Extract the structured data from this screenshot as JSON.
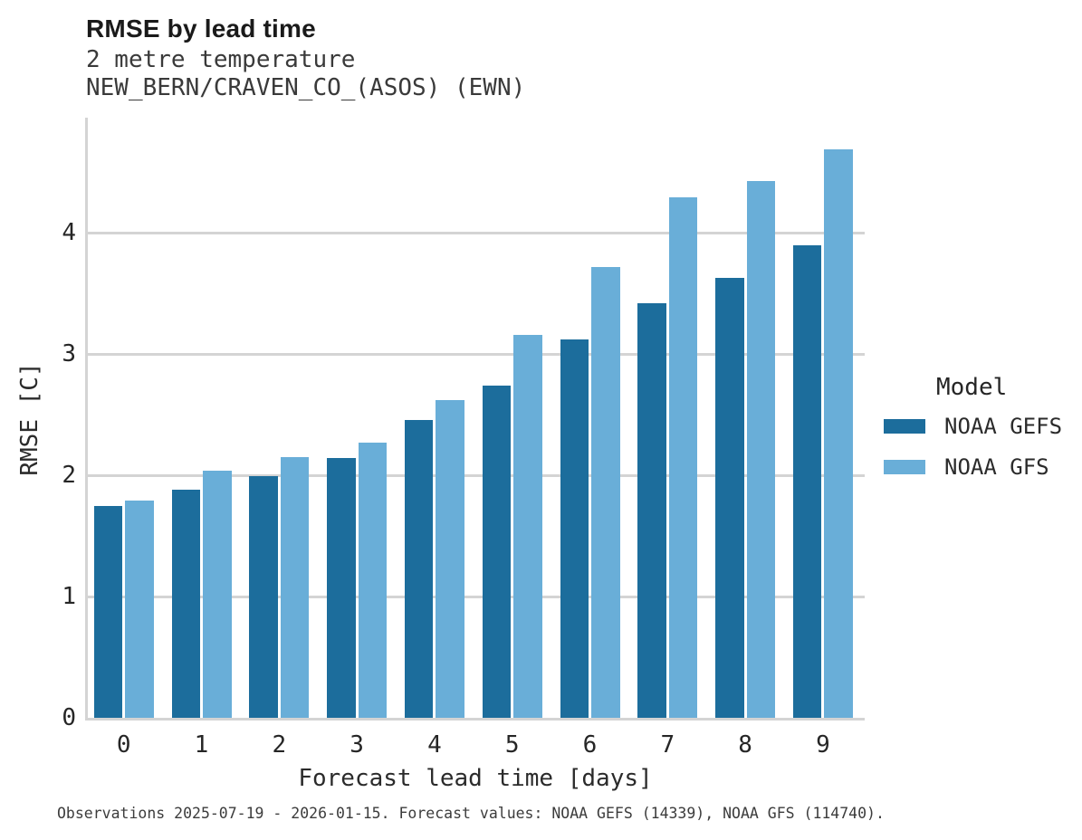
{
  "header": {
    "title": "RMSE by lead time",
    "subtitle_variable": "2 metre temperature",
    "subtitle_station": "NEW_BERN/CRAVEN_CO_(ASOS) (EWN)"
  },
  "chart_data": {
    "type": "bar",
    "title": "RMSE by lead time",
    "xlabel": "Forecast lead time [days]",
    "ylabel": "RMSE [C]",
    "categories": [
      "0",
      "1",
      "2",
      "3",
      "4",
      "5",
      "6",
      "7",
      "8",
      "9"
    ],
    "series": [
      {
        "name": "NOAA GEFS",
        "color": "#1c6d9c",
        "values": [
          1.75,
          1.88,
          1.99,
          2.14,
          2.46,
          2.74,
          3.12,
          3.42,
          3.63,
          3.9
        ]
      },
      {
        "name": "NOAA GFS",
        "color": "#69aed8",
        "values": [
          1.79,
          2.04,
          2.15,
          2.27,
          2.62,
          3.16,
          3.72,
          4.29,
          4.43,
          4.69
        ]
      }
    ],
    "ylim": [
      0,
      4.95
    ],
    "yticks": [
      0,
      1,
      2,
      3,
      4
    ],
    "grid": true,
    "legend_title": "Model",
    "legend_position": "right",
    "grid_color": "#d4d4d4"
  },
  "footer": {
    "text": "Observations 2025-07-19 - 2026-01-15. Forecast values: NOAA GEFS (14339), NOAA GFS (114740)."
  }
}
